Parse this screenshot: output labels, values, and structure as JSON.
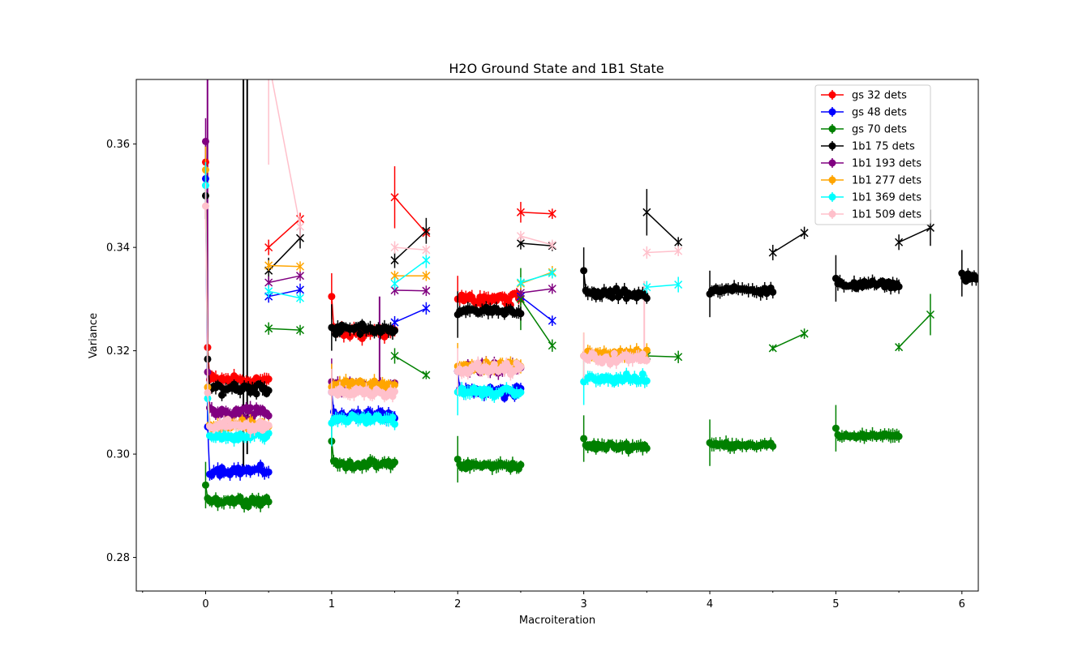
{
  "chart_data": {
    "type": "scatter",
    "title": "H2O Ground State and 1B1 State",
    "xlabel": "Macroiteration",
    "ylabel": "Variance",
    "xlim": [
      -0.55,
      6.13
    ],
    "ylim": [
      0.2735,
      0.3725
    ],
    "xticks": [
      0,
      1,
      2,
      3,
      4,
      5,
      6
    ],
    "xtick_labels": [
      "0",
      "1",
      "2",
      "3",
      "4",
      "5",
      "6"
    ],
    "yticks": [
      0.28,
      0.3,
      0.32,
      0.34,
      0.36
    ],
    "ytick_labels": [
      "0.28",
      "0.30",
      "0.32",
      "0.34",
      "0.36"
    ],
    "grid": false,
    "legend_position": "top-right",
    "series": [
      {
        "name": "gs 32 dets",
        "color": "#ff0000",
        "clusters": [
          {
            "x0": 0.0,
            "x1": 0.5,
            "start": 0.3565,
            "mean": 0.3143,
            "spread": 0.0018,
            "n": 32
          },
          {
            "x0": 1.0,
            "x1": 1.5,
            "start": 0.3305,
            "mean": 0.3236,
            "spread": 0.0016,
            "n": 32
          },
          {
            "x0": 2.0,
            "x1": 2.5,
            "start": 0.33,
            "mean": 0.33,
            "spread": 0.0016,
            "n": 32
          }
        ],
        "markers": [
          {
            "x": [
              0.5,
              0.75
            ],
            "y": [
              0.34,
              0.3455
            ],
            "err": [
              0.0015,
              0.0012
            ]
          },
          {
            "x": [
              1.5,
              1.75
            ],
            "y": [
              0.3497,
              0.3428
            ],
            "err": [
              0.006,
              0.001
            ]
          },
          {
            "x": [
              2.5,
              2.75
            ],
            "y": [
              0.3468,
              0.3465
            ],
            "err": [
              0.002,
              0.001
            ]
          }
        ]
      },
      {
        "name": "gs 48 dets",
        "color": "#0000ff",
        "clusters": [
          {
            "x0": 0.0,
            "x1": 0.5,
            "start": 0.3533,
            "mean": 0.2968,
            "spread": 0.0012,
            "n": 32
          },
          {
            "x0": 1.0,
            "x1": 1.5,
            "start": 0.312,
            "mean": 0.3075,
            "spread": 0.0015,
            "n": 32
          },
          {
            "x0": 2.0,
            "x1": 2.5,
            "start": 0.316,
            "mean": 0.312,
            "spread": 0.0016,
            "n": 32
          }
        ],
        "markers": [
          {
            "x": [
              0.5,
              0.75
            ],
            "y": [
              0.3305,
              0.3318
            ],
            "err": [
              0.0012,
              0.0012
            ]
          },
          {
            "x": [
              1.5,
              1.75
            ],
            "y": [
              0.3255,
              0.3282
            ],
            "err": [
              0.0012,
              0.0012
            ]
          },
          {
            "x": [
              2.5,
              2.75
            ],
            "y": [
              0.3305,
              0.3258
            ],
            "err": [
              0.001,
              0.001
            ]
          }
        ]
      },
      {
        "name": "gs 70 dets",
        "color": "#008000",
        "clusters": [
          {
            "x0": 0.0,
            "x1": 0.5,
            "start": 0.294,
            "mean": 0.291,
            "spread": 0.0012,
            "n": 32
          },
          {
            "x0": 1.0,
            "x1": 1.5,
            "start": 0.3025,
            "mean": 0.298,
            "spread": 0.001,
            "n": 32
          },
          {
            "x0": 2.0,
            "x1": 2.5,
            "start": 0.299,
            "mean": 0.2978,
            "spread": 0.001,
            "n": 32
          },
          {
            "x0": 3.0,
            "x1": 3.5,
            "start": 0.303,
            "mean": 0.3015,
            "spread": 0.001,
            "n": 32
          },
          {
            "x0": 4.0,
            "x1": 4.5,
            "start": 0.3022,
            "mean": 0.3018,
            "spread": 0.0006,
            "n": 32
          },
          {
            "x0": 5.0,
            "x1": 5.5,
            "start": 0.305,
            "mean": 0.3035,
            "spread": 0.0006,
            "n": 32
          }
        ],
        "markers": [
          {
            "x": [
              0.5,
              0.75
            ],
            "y": [
              0.3243,
              0.324
            ],
            "err": [
              0.0012,
              0.001
            ]
          },
          {
            "x": [
              1.5,
              1.75
            ],
            "y": [
              0.319,
              0.3153
            ],
            "err": [
              0.0015,
              0.0008
            ]
          },
          {
            "x": [
              2.5,
              2.75
            ],
            "y": [
              0.33,
              0.321
            ],
            "err": [
              0.006,
              0.0012
            ]
          },
          {
            "x": [
              3.5,
              3.75
            ],
            "y": [
              0.319,
              0.3188
            ],
            "err": [
              0.001,
              0.0012
            ]
          },
          {
            "x": [
              4.5,
              4.75
            ],
            "y": [
              0.3205,
              0.3233
            ],
            "err": [
              0.0006,
              0.001
            ]
          },
          {
            "x": [
              5.5,
              5.75
            ],
            "y": [
              0.3207,
              0.327
            ],
            "err": [
              0.0008,
              0.004
            ]
          }
        ]
      },
      {
        "name": "1b1 75 dets",
        "color": "#000000",
        "clusters": [
          {
            "x0": 0.0,
            "x1": 0.5,
            "start": 0.35,
            "mean": 0.3128,
            "spread": 0.0016,
            "n": 32
          },
          {
            "x0": 1.0,
            "x1": 1.5,
            "start": 0.3245,
            "mean": 0.3242,
            "spread": 0.0014,
            "n": 32
          },
          {
            "x0": 2.0,
            "x1": 2.5,
            "start": 0.327,
            "mean": 0.3278,
            "spread": 0.0012,
            "n": 32
          },
          {
            "x0": 3.0,
            "x1": 3.5,
            "start": 0.3355,
            "mean": 0.331,
            "spread": 0.0014,
            "n": 32
          },
          {
            "x0": 4.0,
            "x1": 4.5,
            "start": 0.331,
            "mean": 0.3318,
            "spread": 0.001,
            "n": 32
          },
          {
            "x0": 5.0,
            "x1": 5.5,
            "start": 0.334,
            "mean": 0.3328,
            "spread": 0.001,
            "n": 32
          },
          {
            "x0": 6.0,
            "x1": 6.5,
            "start": 0.335,
            "mean": 0.334,
            "spread": 0.001,
            "n": 32
          }
        ],
        "markers": [
          {
            "x": [
              0.5,
              0.75
            ],
            "y": [
              0.3355,
              0.3418
            ],
            "err": [
              0.0025,
              0.002
            ]
          },
          {
            "x": [
              1.5,
              1.75
            ],
            "y": [
              0.3375,
              0.3432
            ],
            "err": [
              0.0015,
              0.0025
            ]
          },
          {
            "x": [
              2.5,
              2.75
            ],
            "y": [
              0.3408,
              0.3403
            ],
            "err": [
              0.0012,
              0.001
            ]
          },
          {
            "x": [
              3.5,
              3.75
            ],
            "y": [
              0.3468,
              0.341
            ],
            "err": [
              0.0045,
              0.001
            ]
          },
          {
            "x": [
              4.5,
              4.75
            ],
            "y": [
              0.339,
              0.3428
            ],
            "err": [
              0.0015,
              0.0012
            ]
          },
          {
            "x": [
              5.5,
              5.75
            ],
            "y": [
              0.341,
              0.3438
            ],
            "err": [
              0.0015,
              0.0035
            ]
          }
        ]
      },
      {
        "name": "1b1 193 dets",
        "color": "#800080",
        "clusters": [
          {
            "x0": 0.0,
            "x1": 0.5,
            "start": 0.3605,
            "mean": 0.308,
            "spread": 0.0018,
            "n": 32
          },
          {
            "x0": 1.0,
            "x1": 1.5,
            "start": 0.314,
            "mean": 0.3128,
            "spread": 0.0016,
            "n": 32
          },
          {
            "x0": 2.0,
            "x1": 2.5,
            "start": 0.316,
            "mean": 0.3165,
            "spread": 0.0016,
            "n": 32
          }
        ],
        "markers": [
          {
            "x": [
              0.5,
              0.75
            ],
            "y": [
              0.3332,
              0.3345
            ],
            "err": [
              0.0012,
              0.001
            ]
          },
          {
            "x": [
              1.5,
              1.75
            ],
            "y": [
              0.3317,
              0.3316
            ],
            "err": [
              0.001,
              0.001
            ]
          },
          {
            "x": [
              2.5,
              2.75
            ],
            "y": [
              0.3312,
              0.332
            ],
            "err": [
              0.001,
              0.001
            ]
          }
        ]
      },
      {
        "name": "1b1 277 dets",
        "color": "#ffa500",
        "clusters": [
          {
            "x0": 0.0,
            "x1": 0.5,
            "start": 0.355,
            "mean": 0.3055,
            "spread": 0.0014,
            "n": 32
          },
          {
            "x0": 1.0,
            "x1": 1.5,
            "start": 0.313,
            "mean": 0.3135,
            "spread": 0.0014,
            "n": 32
          },
          {
            "x0": 2.0,
            "x1": 2.5,
            "start": 0.317,
            "mean": 0.317,
            "spread": 0.0014,
            "n": 32
          },
          {
            "x0": 3.0,
            "x1": 3.5,
            "start": 0.319,
            "mean": 0.3195,
            "spread": 0.0012,
            "n": 32
          }
        ],
        "markers": [
          {
            "x": [
              0.5,
              0.75
            ],
            "y": [
              0.3365,
              0.3363
            ],
            "err": [
              0.001,
              0.001
            ]
          },
          {
            "x": [
              1.5,
              1.75
            ],
            "y": [
              0.3345,
              0.3345
            ],
            "err": [
              0.001,
              0.001
            ]
          },
          {
            "x": [
              2.5,
              2.75
            ],
            "y": [
              0.333,
              0.3352
            ],
            "err": [
              0.0012,
              0.0012
            ]
          }
        ]
      },
      {
        "name": "1b1 369 dets",
        "color": "#00ffff",
        "clusters": [
          {
            "x0": 0.0,
            "x1": 0.5,
            "start": 0.352,
            "mean": 0.3035,
            "spread": 0.0012,
            "n": 32
          },
          {
            "x0": 1.0,
            "x1": 1.5,
            "start": 0.306,
            "mean": 0.3068,
            "spread": 0.0012,
            "n": 32
          },
          {
            "x0": 2.0,
            "x1": 2.5,
            "start": 0.312,
            "mean": 0.312,
            "spread": 0.0012,
            "n": 32
          },
          {
            "x0": 3.0,
            "x1": 3.5,
            "start": 0.314,
            "mean": 0.3145,
            "spread": 0.0012,
            "n": 32
          }
        ],
        "markers": [
          {
            "x": [
              0.5,
              0.75
            ],
            "y": [
              0.3315,
              0.3302
            ],
            "err": [
              0.0012,
              0.001
            ]
          },
          {
            "x": [
              1.5,
              1.75
            ],
            "y": [
              0.333,
              0.3375
            ],
            "err": [
              0.0012,
              0.0015
            ]
          },
          {
            "x": [
              2.5,
              2.75
            ],
            "y": [
              0.3332,
              0.335
            ],
            "err": [
              0.001,
              0.001
            ]
          },
          {
            "x": [
              3.5,
              3.75
            ],
            "y": [
              0.3323,
              0.3328
            ],
            "err": [
              0.0012,
              0.0015
            ]
          }
        ]
      },
      {
        "name": "1b1 509 dets",
        "color": "#ffc0cb",
        "clusters": [
          {
            "x0": 0.0,
            "x1": 0.5,
            "start": 0.348,
            "mean": 0.3055,
            "spread": 0.0014,
            "n": 32
          },
          {
            "x0": 1.0,
            "x1": 1.5,
            "start": 0.312,
            "mean": 0.312,
            "spread": 0.0014,
            "n": 32
          },
          {
            "x0": 2.0,
            "x1": 2.5,
            "start": 0.316,
            "mean": 0.3165,
            "spread": 0.0014,
            "n": 32
          },
          {
            "x0": 3.0,
            "x1": 3.5,
            "start": 0.319,
            "mean": 0.3185,
            "spread": 0.0014,
            "n": 32
          }
        ],
        "markers": [
          {
            "x": [
              0.5,
              0.75
            ],
            "y": [
              0.376,
              0.344
            ],
            "err": [
              0.02,
              0.002
            ]
          },
          {
            "x": [
              1.5,
              1.75
            ],
            "y": [
              0.34,
              0.3395
            ],
            "err": [
              0.0012,
              0.001
            ]
          },
          {
            "x": [
              2.5,
              2.75
            ],
            "y": [
              0.3422,
              0.3405
            ],
            "err": [
              0.001,
              0.001
            ]
          },
          {
            "x": [
              3.5,
              3.75
            ],
            "y": [
              0.339,
              0.3393
            ],
            "err": [
              0.0012,
              0.001
            ]
          }
        ]
      }
    ],
    "spikes": [
      {
        "x": 0.3,
        "y0": 0.296,
        "y1": 0.3725,
        "color": "#000000"
      },
      {
        "x": 0.33,
        "y0": 0.3,
        "y1": 0.3725,
        "color": "#000000"
      },
      {
        "x": 0.015,
        "y0": 0.315,
        "y1": 0.3725,
        "color": "#800080"
      },
      {
        "x": 1.38,
        "y0": 0.312,
        "y1": 0.3305,
        "color": "#800080"
      },
      {
        "x": 3.48,
        "y0": 0.318,
        "y1": 0.3335,
        "color": "#ffc0cb"
      }
    ]
  }
}
